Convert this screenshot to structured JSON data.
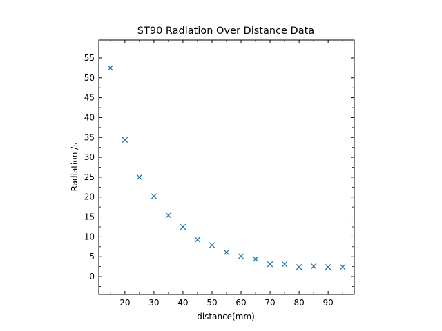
{
  "chart_data": {
    "type": "scatter",
    "title": "ST90 Radiation Over Distance Data",
    "xlabel": "distance(mm)",
    "ylabel": "Radiation /s",
    "xlim": [
      11,
      99
    ],
    "ylim": [
      -4.5,
      59.5
    ],
    "xticks": [
      20,
      30,
      40,
      50,
      60,
      70,
      80,
      90
    ],
    "xticks_minor": [
      15,
      25,
      35,
      45,
      55,
      65,
      75,
      85,
      95
    ],
    "yticks": [
      0,
      5,
      10,
      15,
      20,
      25,
      30,
      35,
      40,
      45,
      50,
      55
    ],
    "yticks_minor": [
      -2.5,
      2.5,
      7.5,
      12.5,
      17.5,
      22.5,
      27.5,
      32.5,
      37.5,
      42.5,
      47.5,
      52.5,
      57.5
    ],
    "marker": "x",
    "color": "#1f77b4",
    "grid": false,
    "legend": "none",
    "series": [
      {
        "x": [
          15,
          20,
          25,
          30,
          35,
          40,
          45,
          50,
          55,
          60,
          65,
          70,
          75,
          80,
          85,
          90,
          95
        ],
        "y": [
          52.5,
          34.4,
          25.0,
          20.2,
          15.4,
          12.5,
          9.3,
          7.9,
          6.1,
          5.1,
          4.4,
          3.1,
          3.1,
          2.4,
          2.6,
          2.4,
          2.4
        ]
      }
    ]
  }
}
